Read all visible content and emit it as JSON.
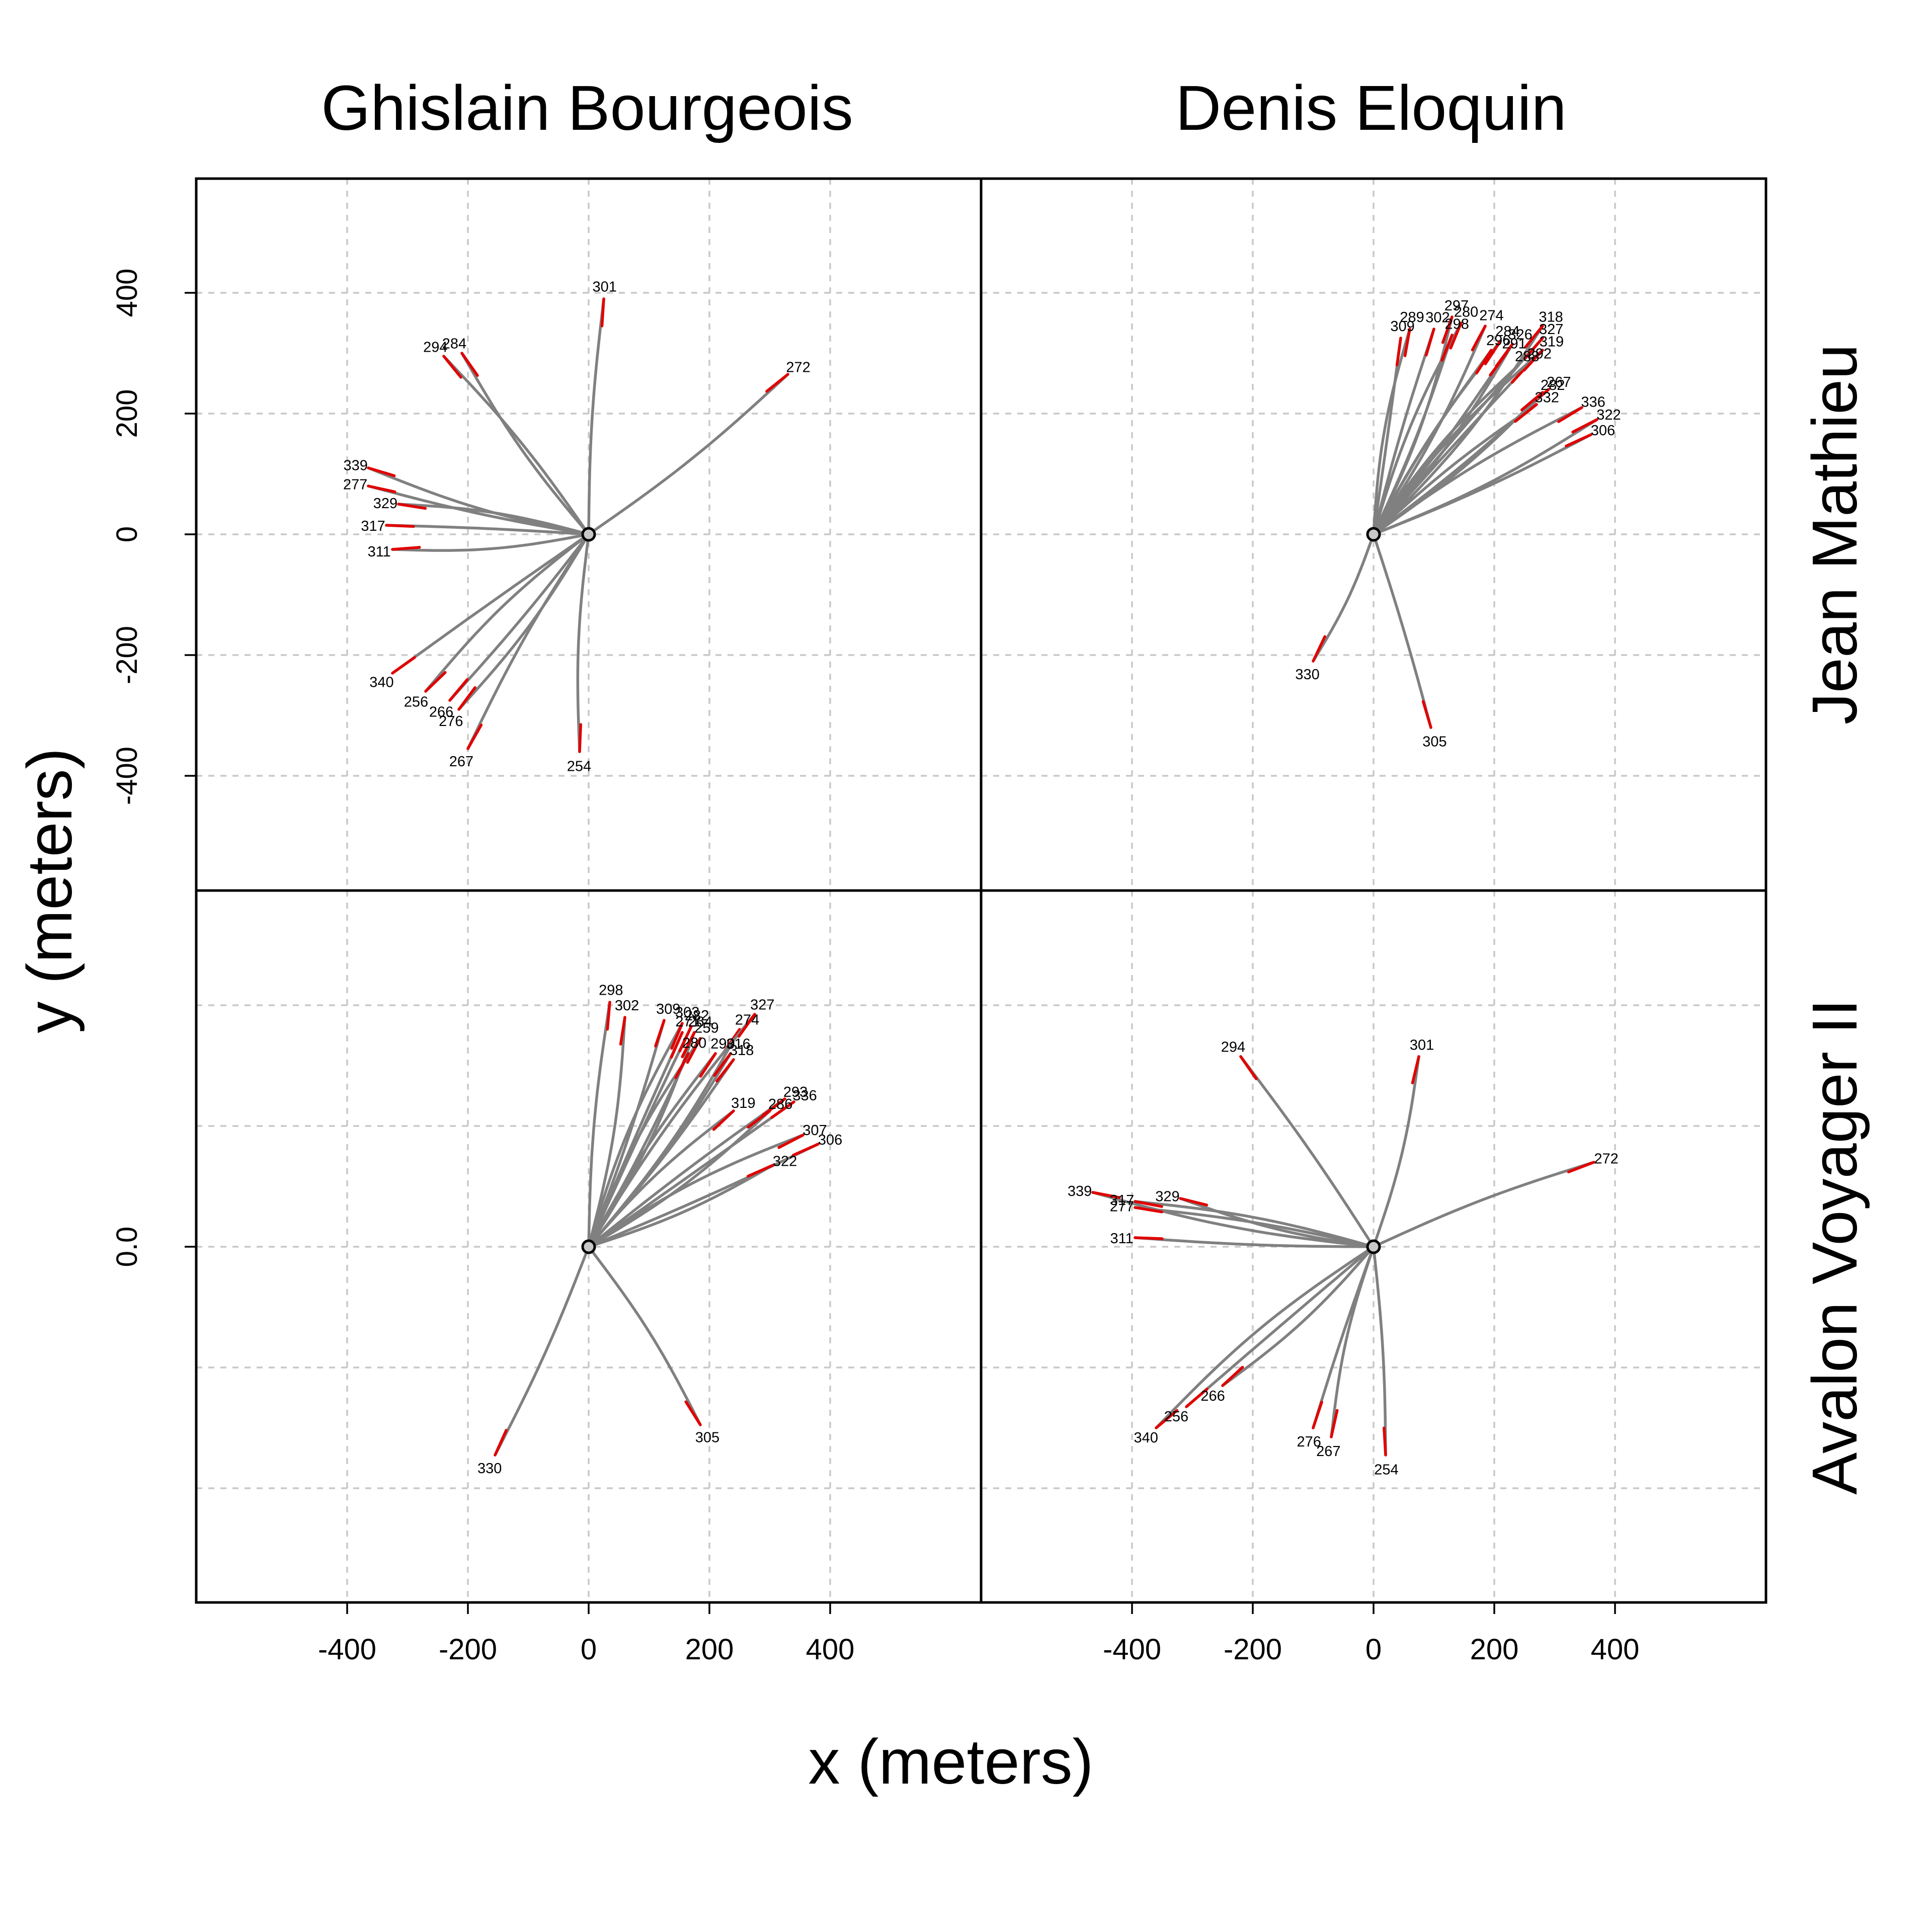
{
  "chart_data": {
    "type": "line",
    "xlabel": "x (meters)",
    "ylabel": "y (meters)",
    "xlim": [
      -540,
      540
    ],
    "ylim": [
      -540,
      540
    ],
    "x_ticks": [
      "-400",
      "-200",
      "0",
      "200",
      "400"
    ],
    "y_ticks": [
      "-400",
      "-200",
      "0",
      "200",
      "400"
    ],
    "y_ticks_bottom_row": [
      "0.0"
    ],
    "grid": true,
    "column_titles": [
      "Ghislain Bourgeois",
      "Denis Eloquin"
    ],
    "row_titles": [
      "Jean Mathieu",
      "Avalon Voyager II"
    ],
    "colors": {
      "track": "#808080",
      "tail": "#e00000",
      "origin": "#c8c8c8",
      "grid": "#c8c8c8",
      "frame": "#000000"
    },
    "panels": [
      {
        "column": "Ghislain Bourgeois",
        "row": "Jean Mathieu",
        "tracks": [
          {
            "id": "301",
            "end": [
              25,
              390
            ]
          },
          {
            "id": "284",
            "end": [
              -210,
              300
            ]
          },
          {
            "id": "294",
            "end": [
              -240,
              295
            ]
          },
          {
            "id": "272",
            "end": [
              330,
              265
            ]
          },
          {
            "id": "339",
            "end": [
              -365,
              110
            ]
          },
          {
            "id": "277",
            "end": [
              -365,
              80
            ]
          },
          {
            "id": "329",
            "end": [
              -315,
              50
            ]
          },
          {
            "id": "317",
            "end": [
              -335,
              15
            ]
          },
          {
            "id": "311",
            "end": [
              -325,
              -25
            ]
          },
          {
            "id": "340",
            "end": [
              -325,
              -230
            ]
          },
          {
            "id": "256",
            "end": [
              -270,
              -260
            ]
          },
          {
            "id": "266",
            "end": [
              -230,
              -275
            ]
          },
          {
            "id": "276",
            "end": [
              -215,
              -290
            ]
          },
          {
            "id": "267",
            "end": [
              -200,
              -355
            ]
          },
          {
            "id": "254",
            "end": [
              -15,
              -360
            ]
          }
        ]
      },
      {
        "column": "Denis Eloquin",
        "row": "Jean Mathieu",
        "tracks": [
          {
            "id": "289",
            "end": [
              60,
              340
            ]
          },
          {
            "id": "309",
            "end": [
              45,
              325
            ]
          },
          {
            "id": "297",
            "end": [
              130,
              360
            ]
          },
          {
            "id": "302",
            "end": [
              100,
              340
            ]
          },
          {
            "id": "280",
            "end": [
              145,
              350
            ]
          },
          {
            "id": "298",
            "end": [
              130,
              330
            ]
          },
          {
            "id": "274",
            "end": [
              185,
              345
            ]
          },
          {
            "id": "284",
            "end": [
              210,
              320
            ]
          },
          {
            "id": "296",
            "end": [
              195,
              305
            ]
          },
          {
            "id": "326",
            "end": [
              230,
              315
            ]
          },
          {
            "id": "291",
            "end": [
              220,
              300
            ]
          },
          {
            "id": "288",
            "end": [
              240,
              280
            ]
          },
          {
            "id": "292",
            "end": [
              260,
              285
            ]
          },
          {
            "id": "318",
            "end": [
              280,
              345
            ]
          },
          {
            "id": "327",
            "end": [
              280,
              325
            ]
          },
          {
            "id": "319",
            "end": [
              280,
              305
            ]
          },
          {
            "id": "267",
            "end": [
              290,
              240
            ]
          },
          {
            "id": "282",
            "end": [
              280,
              235
            ]
          },
          {
            "id": "332",
            "end": [
              270,
              215
            ]
          },
          {
            "id": "336",
            "end": [
              345,
              210
            ]
          },
          {
            "id": "322",
            "end": [
              370,
              190
            ]
          },
          {
            "id": "306",
            "end": [
              360,
              165
            ]
          },
          {
            "id": "330",
            "end": [
              -100,
              -210
            ]
          },
          {
            "id": "305",
            "end": [
              95,
              -320
            ]
          }
        ]
      },
      {
        "column": "Ghislain Bourgeois",
        "row": "Avalon Voyager II",
        "tracks": [
          {
            "id": "298",
            "end": [
              35,
              405
            ]
          },
          {
            "id": "302",
            "end": [
              60,
              380
            ]
          },
          {
            "id": "309",
            "end": [
              125,
              375
            ]
          },
          {
            "id": "303",
            "end": [
              155,
              370
            ]
          },
          {
            "id": "282",
            "end": [
              170,
              365
            ]
          },
          {
            "id": "264",
            "end": [
              175,
              355
            ]
          },
          {
            "id": "271",
            "end": [
              155,
              355
            ]
          },
          {
            "id": "259",
            "end": [
              185,
              345
            ]
          },
          {
            "id": "280",
            "end": [
              165,
              320
            ]
          },
          {
            "id": "274",
            "end": [
              250,
              360
            ]
          },
          {
            "id": "327",
            "end": [
              275,
              385
            ]
          },
          {
            "id": "290",
            "end": [
              210,
              320
            ]
          },
          {
            "id": "316",
            "end": [
              235,
              320
            ]
          },
          {
            "id": "318",
            "end": [
              240,
              310
            ]
          },
          {
            "id": "319",
            "end": [
              240,
              225
            ]
          },
          {
            "id": "293",
            "end": [
              325,
              245
            ]
          },
          {
            "id": "286",
            "end": [
              300,
              225
            ]
          },
          {
            "id": "336",
            "end": [
              340,
              240
            ]
          },
          {
            "id": "307",
            "end": [
              355,
              185
            ]
          },
          {
            "id": "306",
            "end": [
              380,
              170
            ]
          },
          {
            "id": "322",
            "end": [
              305,
              135
            ]
          },
          {
            "id": "330",
            "end": [
              -155,
              -345
            ]
          },
          {
            "id": "305",
            "end": [
              185,
              -295
            ]
          }
        ]
      },
      {
        "column": "Denis Eloquin",
        "row": "Avalon Voyager II",
        "tracks": [
          {
            "id": "294",
            "end": [
              -220,
              315
            ]
          },
          {
            "id": "301",
            "end": [
              75,
              315
            ]
          },
          {
            "id": "272",
            "end": [
              365,
              140
            ]
          },
          {
            "id": "339",
            "end": [
              -465,
              90
            ]
          },
          {
            "id": "317",
            "end": [
              -395,
              75
            ]
          },
          {
            "id": "277",
            "end": [
              -395,
              65
            ]
          },
          {
            "id": "329",
            "end": [
              -320,
              80
            ]
          },
          {
            "id": "311",
            "end": [
              -395,
              15
            ]
          },
          {
            "id": "340",
            "end": [
              -360,
              -300
            ]
          },
          {
            "id": "256",
            "end": [
              -310,
              -265
            ]
          },
          {
            "id": "266",
            "end": [
              -250,
              -230
            ]
          },
          {
            "id": "276",
            "end": [
              -100,
              -300
            ]
          },
          {
            "id": "267",
            "end": [
              -70,
              -315
            ]
          },
          {
            "id": "254",
            "end": [
              20,
              -345
            ]
          }
        ]
      }
    ]
  }
}
